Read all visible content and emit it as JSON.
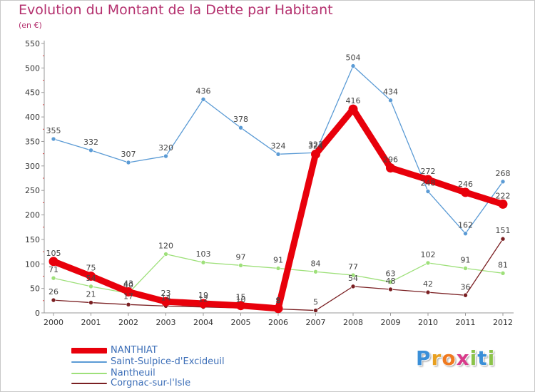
{
  "title": "Evolution du Montant de la Dette par Habitant",
  "subtitle": "(en €)",
  "logo": {
    "letters": [
      "P",
      "r",
      "o",
      "x",
      "i",
      "t",
      "i"
    ],
    "colors": [
      "#3a8fd8",
      "#e8a020",
      "#f07a20",
      "#d83a8a",
      "#8bc34a",
      "#3a8fd8",
      "#8bc34a"
    ]
  },
  "chart_data": {
    "type": "line",
    "x": [
      "2000",
      "2001",
      "2002",
      "2003",
      "2004",
      "2005",
      "2006",
      "2007",
      "2008",
      "2009",
      "2010",
      "2011",
      "2012"
    ],
    "ylim": [
      0,
      550
    ],
    "yticks": [
      "0",
      "50",
      "100",
      "150",
      "200",
      "250",
      "300",
      "350",
      "400",
      "450",
      "500",
      "550"
    ],
    "grid": false,
    "legend_position": "bottom-left",
    "series": [
      {
        "name": "NANTHIAT",
        "color": "#e8000b",
        "values": [
          105,
          75,
          43,
          23,
          19,
          15,
          9,
          324,
          416,
          296,
          272,
          246,
          222
        ]
      },
      {
        "name": "Saint-Sulpice-d'Excideuil",
        "color": "#5b9bd5",
        "values": [
          355,
          332,
          307,
          320,
          436,
          378,
          324,
          327,
          504,
          434,
          248,
          162,
          268
        ]
      },
      {
        "name": "Nantheuil",
        "color": "#9ee07a",
        "values": [
          71,
          54,
          40,
          120,
          103,
          97,
          91,
          84,
          77,
          63,
          102,
          91,
          81
        ]
      },
      {
        "name": "Corgnac-sur-l'Isle",
        "color": "#7a1f22",
        "values": [
          26,
          21,
          17,
          14,
          12,
          10,
          8,
          5,
          54,
          48,
          42,
          36,
          151
        ]
      }
    ]
  }
}
